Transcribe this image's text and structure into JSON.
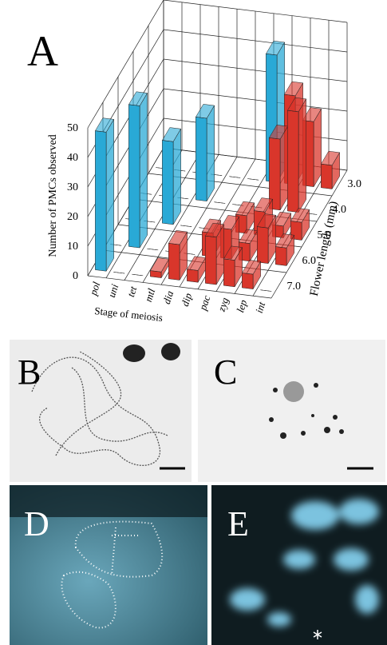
{
  "chart_data": {
    "type": "bar3d",
    "label": "A",
    "y_label": "Number of PMCs observed",
    "x_label": "Stage of meiosis",
    "depth_label": "Flower length (mm)",
    "categories": [
      "pol",
      "uni",
      "tet",
      "mtl",
      "dia",
      "dip",
      "pac",
      "zyg",
      "lep",
      "int"
    ],
    "ylim": [
      0,
      50
    ],
    "yticks": [
      0,
      10,
      20,
      30,
      40,
      50
    ],
    "grid": true,
    "series": [
      {
        "name": "3.0",
        "values": [
          0,
          0,
          0,
          0,
          0,
          0,
          43,
          30,
          22,
          8
        ],
        "colors": [
          "#29a9d6",
          "#29a9d6",
          "#29a9d6",
          "#29a9d6",
          "#d9362b",
          "#d9362b",
          "#29a9d6",
          "#d9362b",
          "#d9362b",
          "#d9362b"
        ]
      },
      {
        "name": "4.0",
        "values": [
          0,
          0,
          0,
          28,
          0,
          0,
          0,
          24,
          34,
          0
        ],
        "colors": [
          "#29a9d6",
          "#29a9d6",
          "#29a9d6",
          "#29a9d6",
          "#d9362b",
          "#d9362b",
          "#d9362b",
          "#d9362b",
          "#d9362b",
          "#d9362b"
        ]
      },
      {
        "name": "5.0",
        "values": [
          0,
          0,
          28,
          0,
          0,
          0,
          6,
          8,
          4,
          6
        ],
        "colors": [
          "#29a9d6",
          "#29a9d6",
          "#29a9d6",
          "#29a9d6",
          "#d9362b",
          "#d9362b",
          "#d9362b",
          "#d9362b",
          "#d9362b",
          "#d9362b"
        ]
      },
      {
        "name": "6.0",
        "values": [
          0,
          48,
          0,
          0,
          0,
          8,
          10,
          6,
          12,
          6
        ],
        "colors": [
          "#29a9d6",
          "#29a9d6",
          "#29a9d6",
          "#29a9d6",
          "#d9362b",
          "#d9362b",
          "#d9362b",
          "#d9362b",
          "#d9362b",
          "#d9362b"
        ]
      },
      {
        "name": "7.0",
        "values": [
          47,
          0,
          0,
          2,
          12,
          4,
          16,
          9,
          5,
          0
        ],
        "colors": [
          "#29a9d6",
          "#29a9d6",
          "#29a9d6",
          "#d9362b",
          "#d9362b",
          "#d9362b",
          "#d9362b",
          "#d9362b",
          "#d9362b",
          "#d9362b"
        ]
      }
    ]
  },
  "panels": [
    "B",
    "C",
    "D",
    "E"
  ]
}
